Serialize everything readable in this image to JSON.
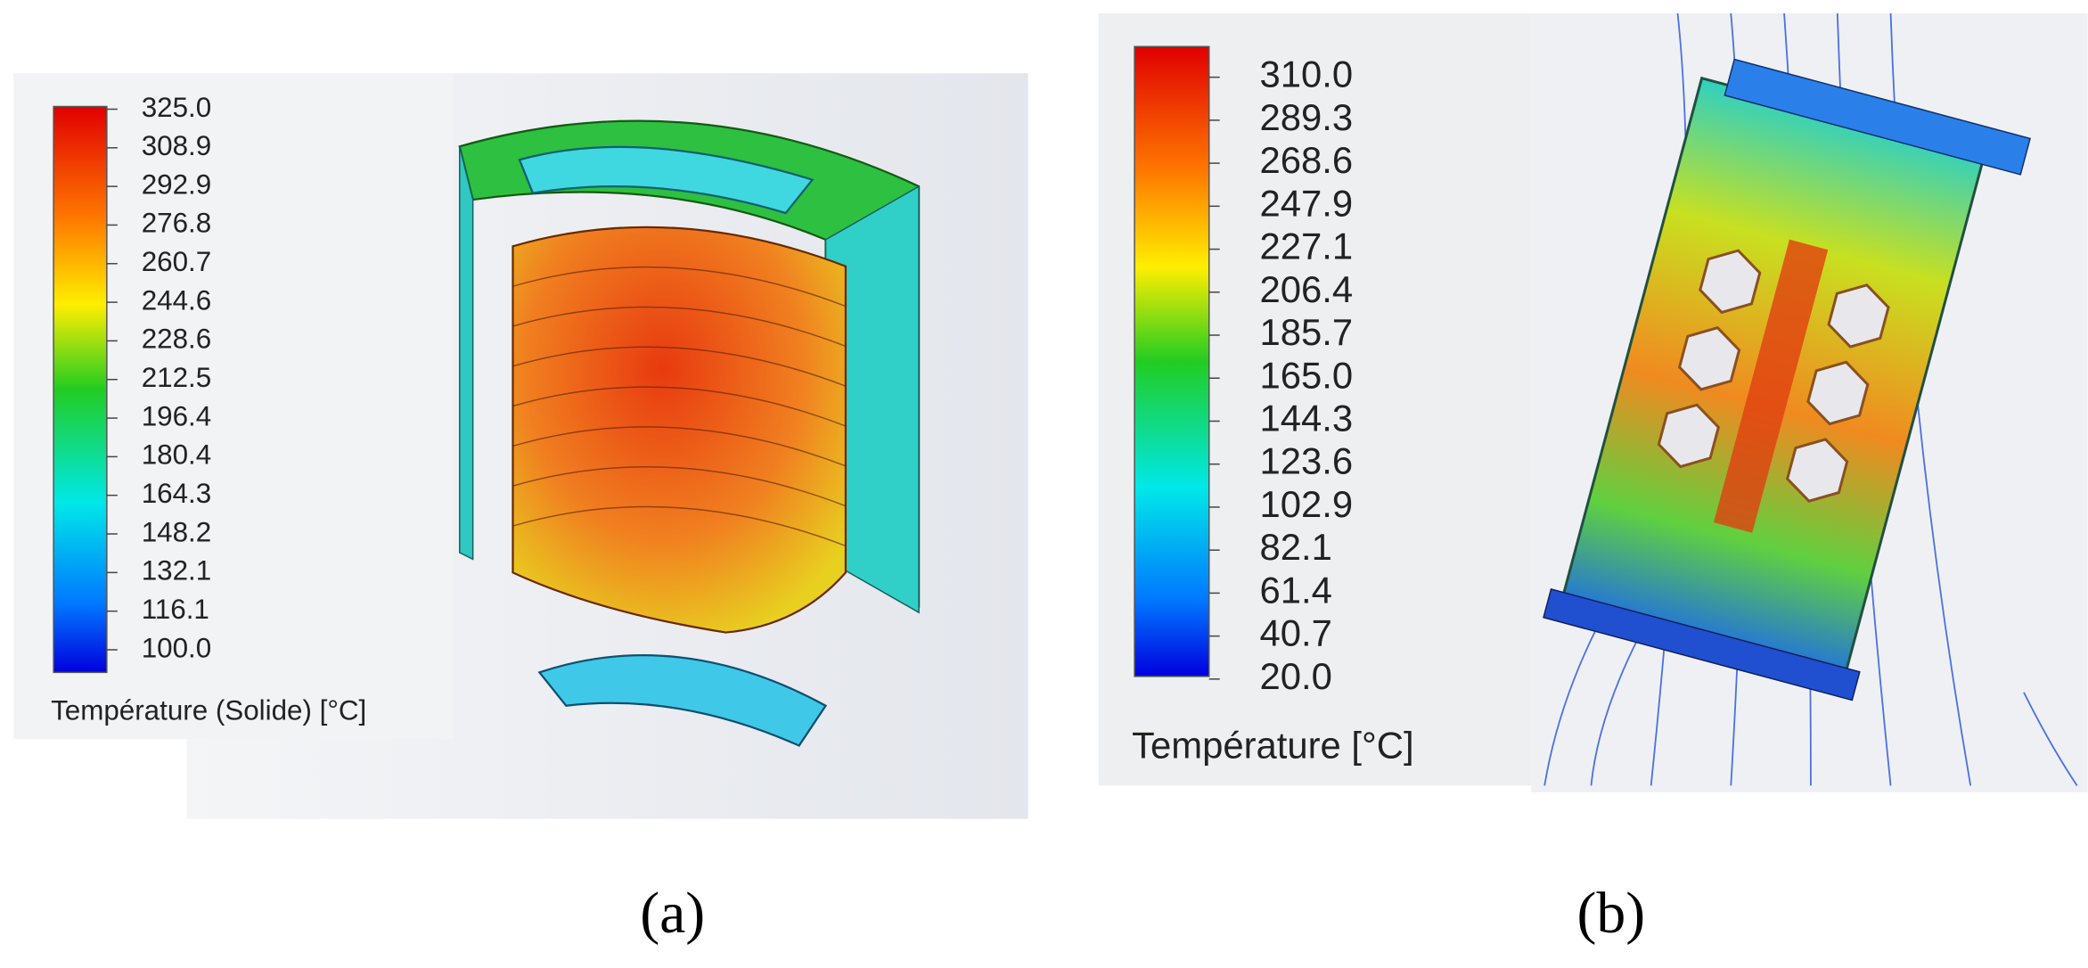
{
  "panel_a": {
    "legend_ticks": [
      "325.0",
      "308.9",
      "292.9",
      "276.8",
      "260.7",
      "244.6",
      "228.6",
      "212.5",
      "196.4",
      "180.4",
      "164.3",
      "148.2",
      "132.1",
      "116.1",
      "100.0"
    ],
    "legend_title": "Température (Solide) [°C]",
    "caption": "(a)"
  },
  "panel_b": {
    "legend_ticks": [
      "310.0",
      "289.3",
      "268.6",
      "247.9",
      "227.1",
      "206.4",
      "185.7",
      "165.0",
      "144.3",
      "123.6",
      "102.9",
      "82.1",
      "61.4",
      "40.7",
      "20.0"
    ],
    "legend_title": "Température [°C]",
    "caption": "(b)"
  }
}
